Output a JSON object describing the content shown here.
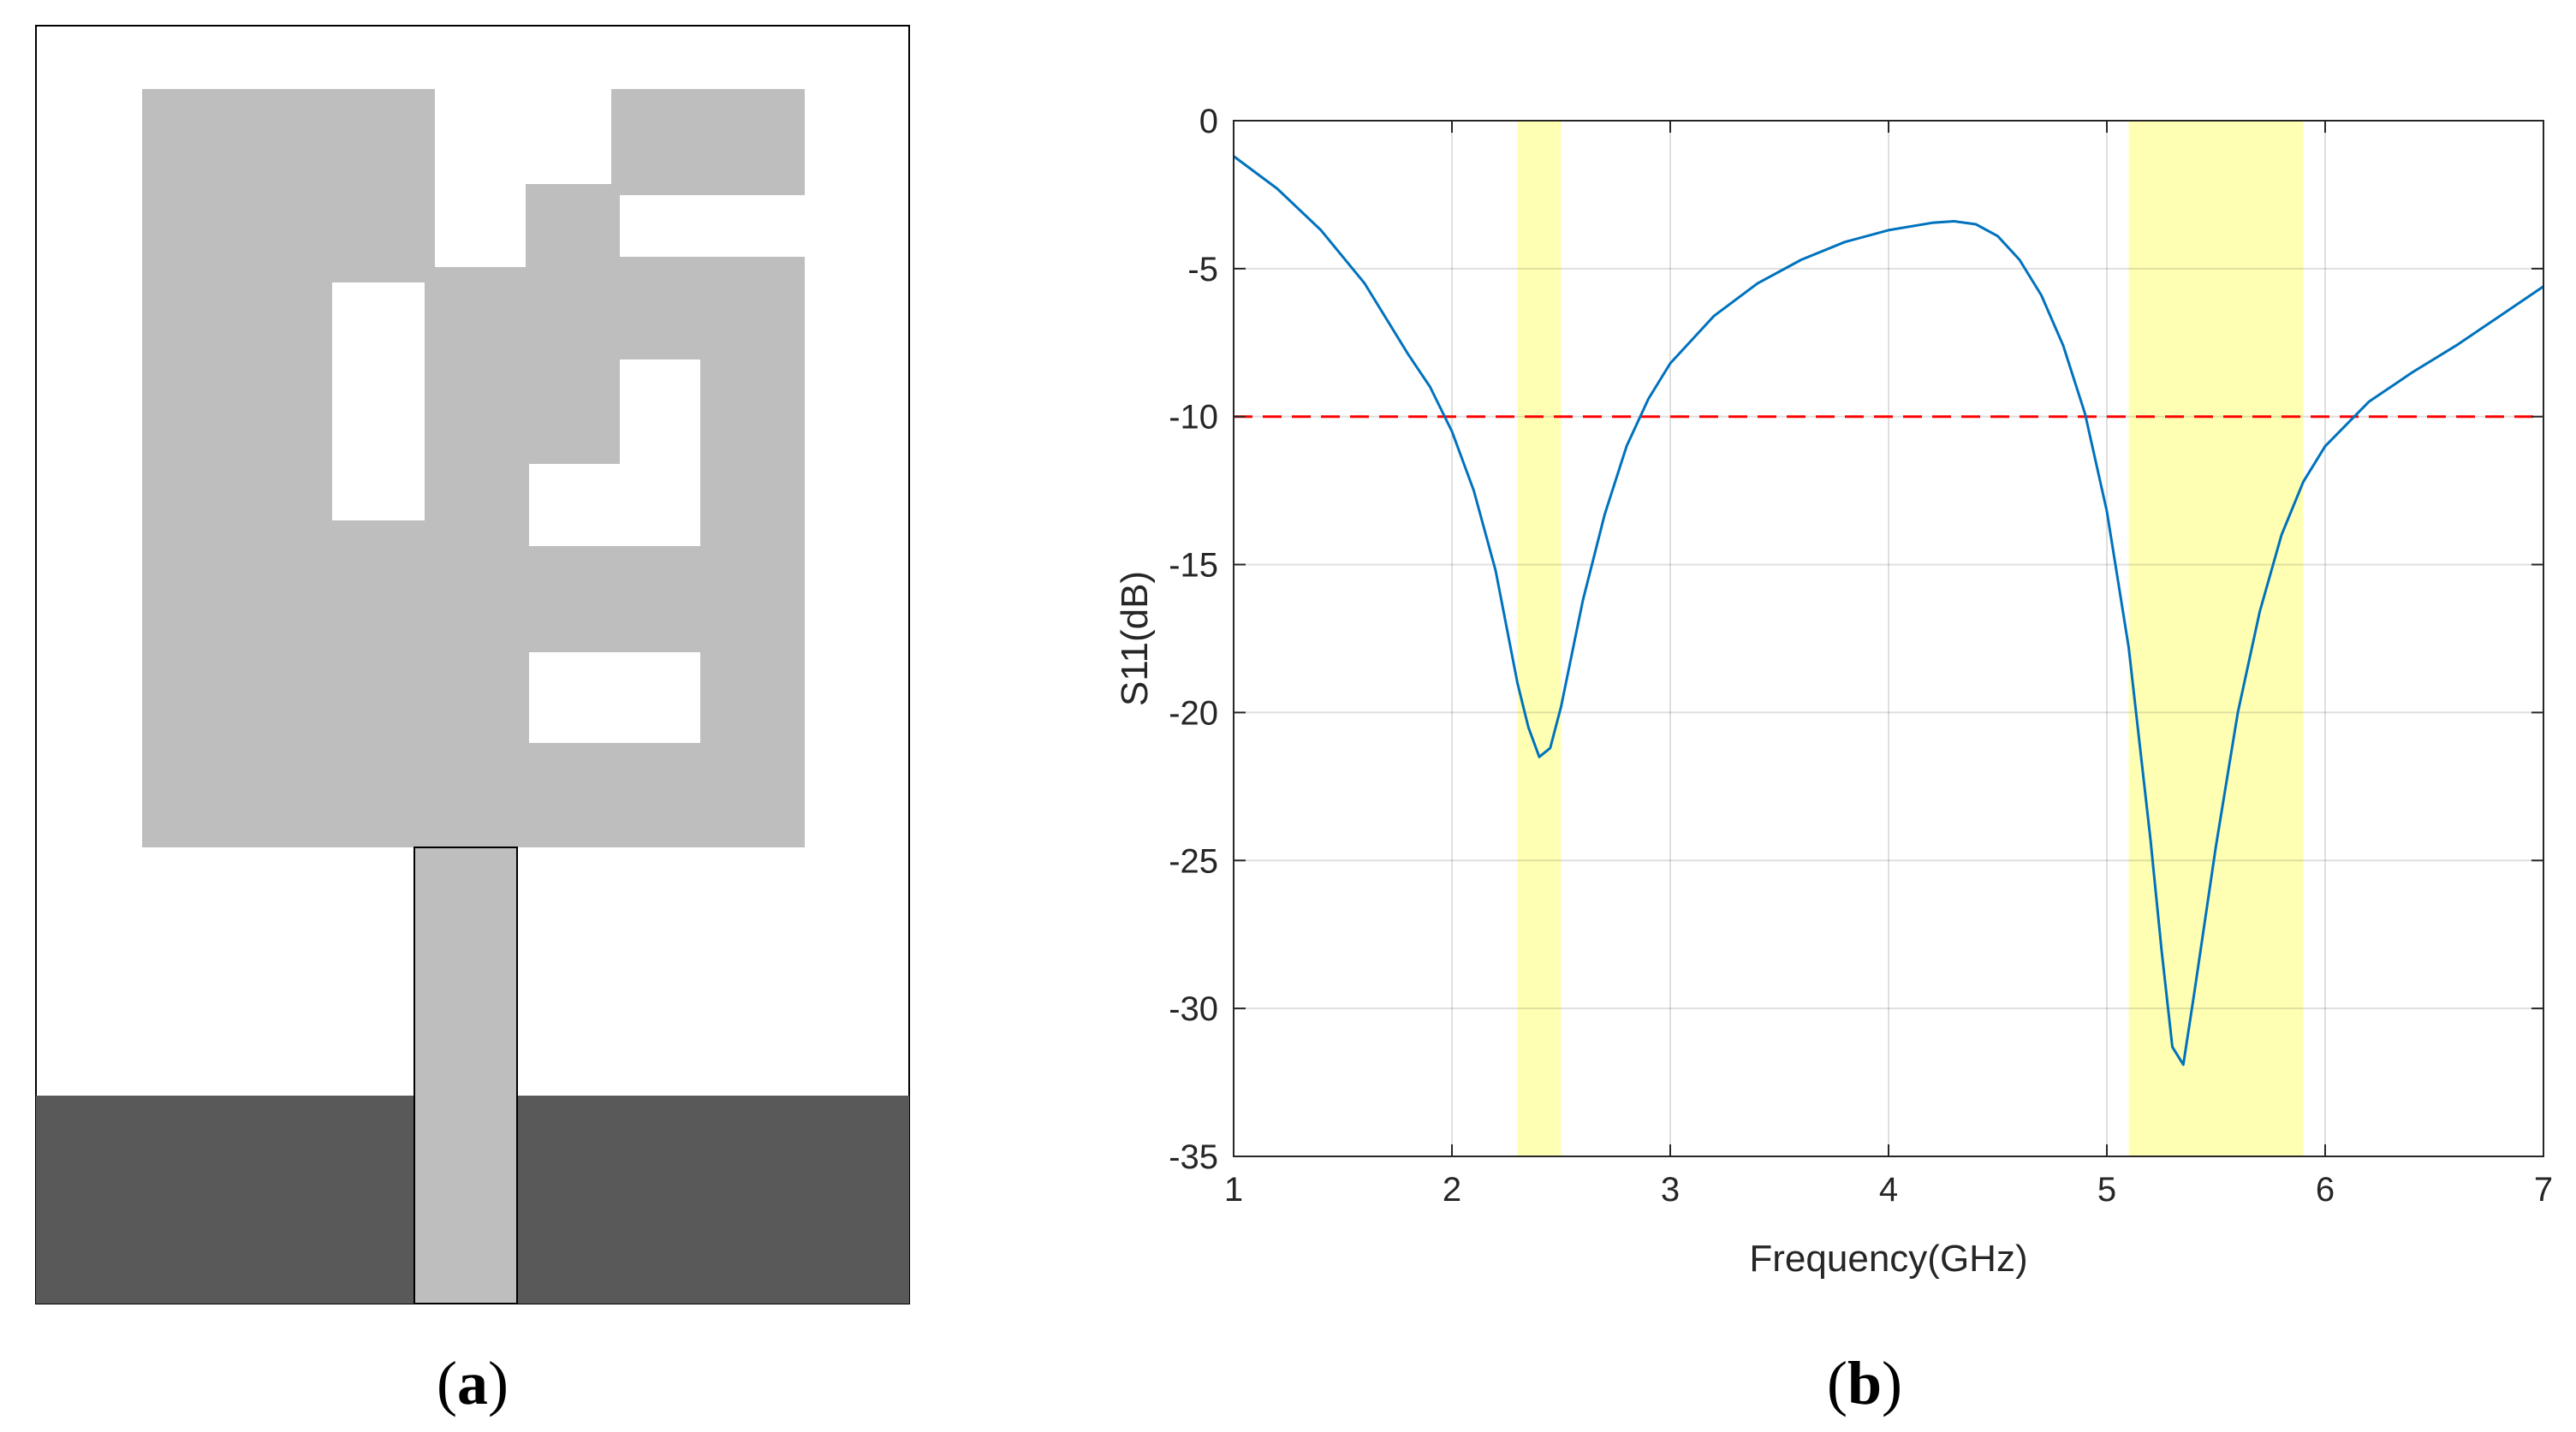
{
  "panel_a": {
    "label_open": "(",
    "label_letter": "a",
    "label_close": ")",
    "colors": {
      "patch": "#bebebe",
      "ground": "#595959",
      "substrate": "#ffffff"
    }
  },
  "panel_b": {
    "label_open": "(",
    "label_letter": "b",
    "label_close": ")"
  },
  "chart_data": {
    "type": "line",
    "title": "",
    "xlabel": "Frequency(GHz)",
    "ylabel": "S11(dB)",
    "xlim": [
      1,
      7
    ],
    "ylim": [
      -35,
      0
    ],
    "xticks": [
      1,
      2,
      3,
      4,
      5,
      6,
      7
    ],
    "yticks": [
      0,
      -5,
      -10,
      -15,
      -20,
      -25,
      -30,
      -35
    ],
    "grid": true,
    "legend": "none",
    "highlight_bands": [
      {
        "x": [
          2.3,
          2.5
        ],
        "color": "#ffffb3"
      },
      {
        "x": [
          5.1,
          5.9
        ],
        "color": "#ffffb3"
      }
    ],
    "reference_line": {
      "y": -10,
      "style": "dashed",
      "color": "#ff0000"
    },
    "series": [
      {
        "color": "#0072bd",
        "x": [
          1.0,
          1.2,
          1.4,
          1.6,
          1.8,
          1.9,
          2.0,
          2.1,
          2.2,
          2.3,
          2.35,
          2.4,
          2.45,
          2.5,
          2.6,
          2.7,
          2.8,
          2.9,
          3.0,
          3.2,
          3.4,
          3.6,
          3.8,
          4.0,
          4.2,
          4.3,
          4.4,
          4.5,
          4.6,
          4.7,
          4.8,
          4.9,
          5.0,
          5.1,
          5.2,
          5.25,
          5.3,
          5.35,
          5.4,
          5.5,
          5.6,
          5.7,
          5.8,
          5.9,
          6.0,
          6.2,
          6.4,
          6.6,
          6.8,
          7.0
        ],
        "y": [
          -1.2,
          -2.3,
          -3.7,
          -5.5,
          -7.9,
          -9.0,
          -10.5,
          -12.5,
          -15.2,
          -19.0,
          -20.5,
          -21.5,
          -21.2,
          -19.8,
          -16.2,
          -13.3,
          -11.0,
          -9.4,
          -8.2,
          -6.6,
          -5.5,
          -4.7,
          -4.1,
          -3.7,
          -3.45,
          -3.4,
          -3.5,
          -3.9,
          -4.7,
          -5.9,
          -7.6,
          -9.9,
          -13.2,
          -17.8,
          -24.3,
          -28.0,
          -31.3,
          -31.9,
          -29.5,
          -24.5,
          -20.0,
          -16.6,
          -14.0,
          -12.2,
          -11.0,
          -9.5,
          -8.5,
          -7.6,
          -6.6,
          -5.6
        ]
      }
    ]
  }
}
